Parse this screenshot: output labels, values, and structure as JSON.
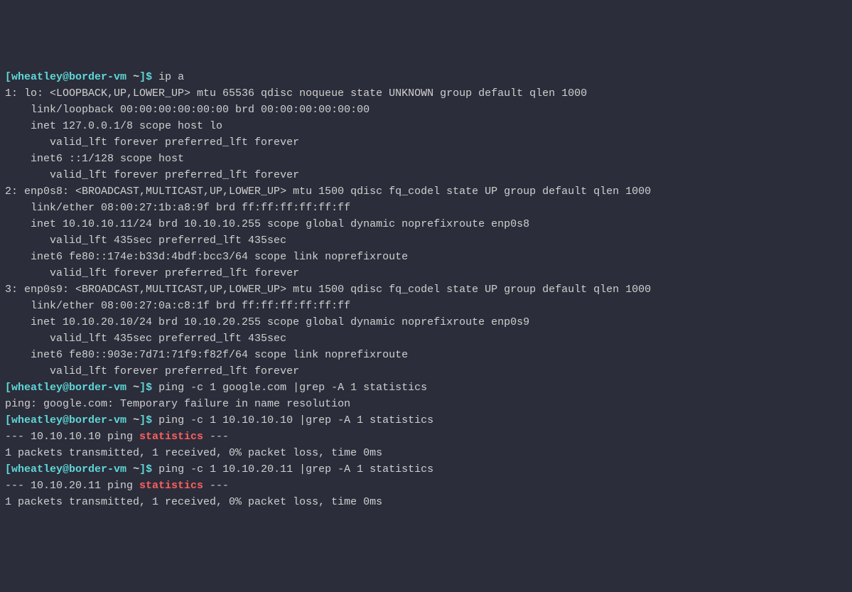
{
  "colors": {
    "background": "#2b2d3a",
    "text": "#d0d0d0",
    "prompt": "#5fd7d7",
    "highlight": "#ff5f5f"
  },
  "prompt": {
    "open_bracket": "[",
    "user": "wheatley",
    "at": "@",
    "host": "border-vm",
    "space_tilde": " ~",
    "close_bracket": "]",
    "dollar": "$ "
  },
  "blocks": [
    {
      "type": "command",
      "command": "ip a",
      "output": [
        "1: lo: <LOOPBACK,UP,LOWER_UP> mtu 65536 qdisc noqueue state UNKNOWN group default qlen 1000",
        "    link/loopback 00:00:00:00:00:00 brd 00:00:00:00:00:00",
        "    inet 127.0.0.1/8 scope host lo",
        "       valid_lft forever preferred_lft forever",
        "    inet6 ::1/128 scope host",
        "       valid_lft forever preferred_lft forever",
        "2: enp0s8: <BROADCAST,MULTICAST,UP,LOWER_UP> mtu 1500 qdisc fq_codel state UP group default qlen 1000",
        "    link/ether 08:00:27:1b:a8:9f brd ff:ff:ff:ff:ff:ff",
        "    inet 10.10.10.11/24 brd 10.10.10.255 scope global dynamic noprefixroute enp0s8",
        "       valid_lft 435sec preferred_lft 435sec",
        "    inet6 fe80::174e:b33d:4bdf:bcc3/64 scope link noprefixroute",
        "       valid_lft forever preferred_lft forever",
        "3: enp0s9: <BROADCAST,MULTICAST,UP,LOWER_UP> mtu 1500 qdisc fq_codel state UP group default qlen 1000",
        "    link/ether 08:00:27:0a:c8:1f brd ff:ff:ff:ff:ff:ff",
        "    inet 10.10.20.10/24 brd 10.10.20.255 scope global dynamic noprefixroute enp0s9",
        "       valid_lft 435sec preferred_lft 435sec",
        "    inet6 fe80::903e:7d71:71f9:f82f/64 scope link noprefixroute",
        "       valid_lft forever preferred_lft forever"
      ]
    },
    {
      "type": "command",
      "command": "ping -c 1 google.com |grep -A 1 statistics",
      "output": [
        "ping: google.com: Temporary failure in name resolution"
      ]
    },
    {
      "type": "command",
      "command": "ping -c 1 10.10.10.10 |grep -A 1 statistics",
      "output_rich": [
        [
          {
            "t": "--- 10.10.10.10 ping "
          },
          {
            "t": "statistics",
            "hl": true
          },
          {
            "t": " ---"
          }
        ],
        [
          {
            "t": "1 packets transmitted, 1 received, 0% packet loss, time 0ms"
          }
        ]
      ]
    },
    {
      "type": "command",
      "command": "ping -c 1 10.10.20.11 |grep -A 1 statistics",
      "output_rich": [
        [
          {
            "t": "--- 10.10.20.11 ping "
          },
          {
            "t": "statistics",
            "hl": true
          },
          {
            "t": " ---"
          }
        ],
        [
          {
            "t": "1 packets transmitted, 1 received, 0% packet loss, time 0ms"
          }
        ]
      ]
    }
  ]
}
